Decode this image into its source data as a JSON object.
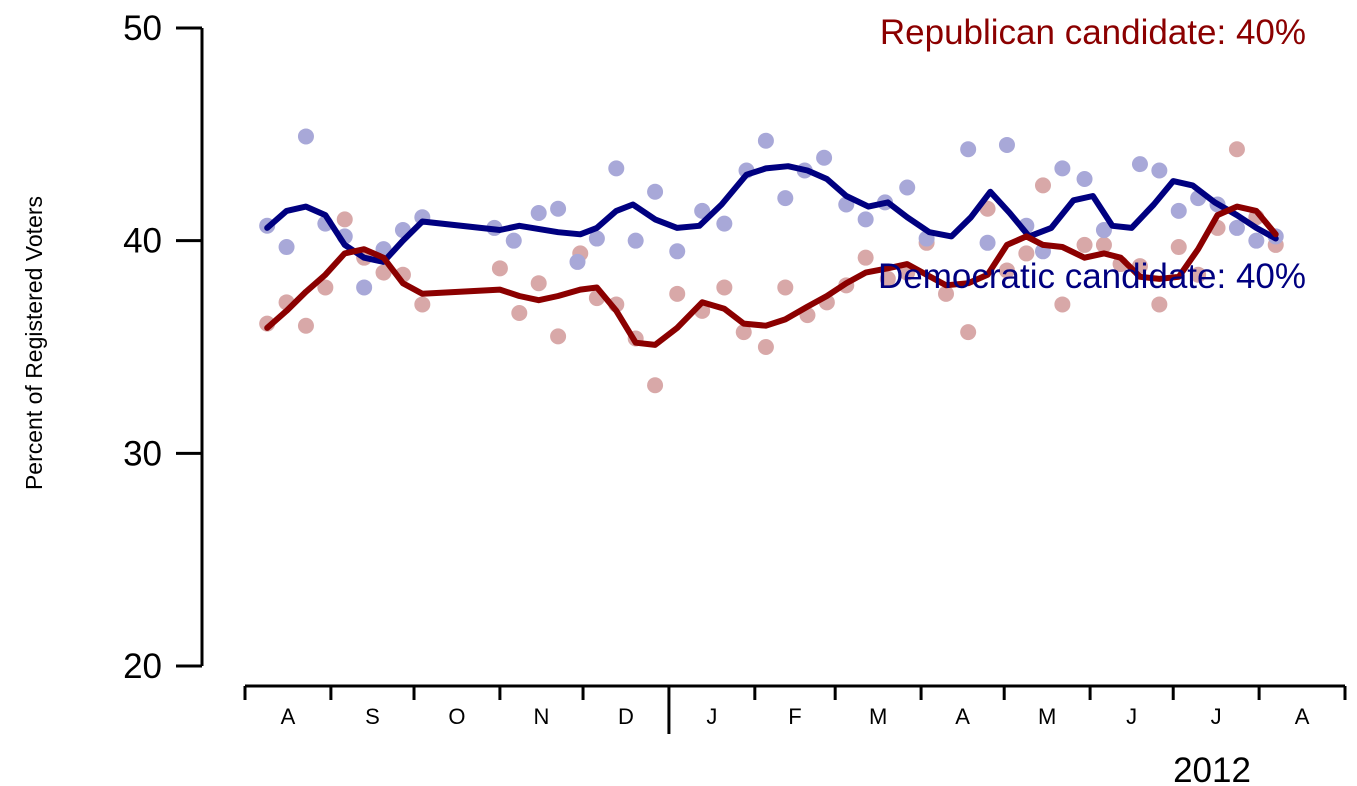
{
  "chart_data": {
    "type": "line",
    "ylabel": "Percent of Registered Voters",
    "ylim": [
      20,
      50
    ],
    "yticks": [
      20,
      30,
      40,
      50
    ],
    "x_unit": "month",
    "months": [
      {
        "label": "A",
        "date": "2011-08"
      },
      {
        "label": "S",
        "date": "2011-09"
      },
      {
        "label": "O",
        "date": "2011-10"
      },
      {
        "label": "N",
        "date": "2011-11"
      },
      {
        "label": "D",
        "date": "2011-12"
      },
      {
        "label": "J",
        "date": "2012-01"
      },
      {
        "label": "F",
        "date": "2012-02"
      },
      {
        "label": "M",
        "date": "2012-03"
      },
      {
        "label": "A",
        "date": "2012-04"
      },
      {
        "label": "M",
        "date": "2012-05"
      },
      {
        "label": "J",
        "date": "2012-06"
      },
      {
        "label": "J",
        "date": "2012-07"
      },
      {
        "label": "A",
        "date": "2012-08"
      }
    ],
    "year_label": "2012",
    "series": [
      {
        "name": "Democratic candidate",
        "label": "Democratic candidate: 40%",
        "color": "#000080",
        "point_color": "#A8A8D8",
        "points": [
          [
            "2011-08-09",
            40.7
          ],
          [
            "2011-08-16",
            39.7
          ],
          [
            "2011-08-23",
            44.9
          ],
          [
            "2011-08-30",
            40.8
          ],
          [
            "2011-09-06",
            40.2
          ],
          [
            "2011-09-13",
            37.8
          ],
          [
            "2011-09-20",
            39.6
          ],
          [
            "2011-09-27",
            40.5
          ],
          [
            "2011-10-04",
            41.1
          ],
          [
            "2011-10-30",
            40.6
          ],
          [
            "2011-11-06",
            40.0
          ],
          [
            "2011-11-15",
            41.3
          ],
          [
            "2011-11-22",
            41.5
          ],
          [
            "2011-11-29",
            39.0
          ],
          [
            "2011-12-06",
            40.1
          ],
          [
            "2011-12-13",
            43.4
          ],
          [
            "2011-12-20",
            40.0
          ],
          [
            "2011-12-27",
            42.3
          ],
          [
            "2012-01-04",
            39.5
          ],
          [
            "2012-01-13",
            41.4
          ],
          [
            "2012-01-21",
            40.8
          ],
          [
            "2012-01-29",
            43.3
          ],
          [
            "2012-02-05",
            44.7
          ],
          [
            "2012-02-12",
            42.0
          ],
          [
            "2012-02-19",
            43.3
          ],
          [
            "2012-02-26",
            43.9
          ],
          [
            "2012-03-05",
            41.7
          ],
          [
            "2012-03-12",
            41.0
          ],
          [
            "2012-03-19",
            41.8
          ],
          [
            "2012-03-27",
            42.5
          ],
          [
            "2012-04-03",
            40.1
          ],
          [
            "2012-04-18",
            44.3
          ],
          [
            "2012-04-25",
            39.9
          ],
          [
            "2012-05-02",
            44.5
          ],
          [
            "2012-05-09",
            40.7
          ],
          [
            "2012-05-15",
            39.5
          ],
          [
            "2012-05-22",
            43.4
          ],
          [
            "2012-05-30",
            42.9
          ],
          [
            "2012-06-06",
            40.5
          ],
          [
            "2012-06-19",
            43.6
          ],
          [
            "2012-06-26",
            43.3
          ],
          [
            "2012-07-03",
            41.4
          ],
          [
            "2012-07-10",
            42.0
          ],
          [
            "2012-07-17",
            41.7
          ],
          [
            "2012-07-24",
            40.6
          ],
          [
            "2012-07-31",
            40.0
          ],
          [
            "2012-08-07",
            40.2
          ]
        ],
        "trend": [
          [
            "2011-08-09",
            40.6
          ],
          [
            "2011-08-16",
            41.4
          ],
          [
            "2011-08-23",
            41.6
          ],
          [
            "2011-08-30",
            41.2
          ],
          [
            "2011-09-06",
            39.8
          ],
          [
            "2011-09-13",
            39.2
          ],
          [
            "2011-09-20",
            39.0
          ],
          [
            "2011-09-27",
            40.0
          ],
          [
            "2011-10-04",
            40.9
          ],
          [
            "2011-11-01",
            40.5
          ],
          [
            "2011-11-08",
            40.7
          ],
          [
            "2011-11-22",
            40.4
          ],
          [
            "2011-11-30",
            40.3
          ],
          [
            "2011-12-06",
            40.6
          ],
          [
            "2011-12-13",
            41.4
          ],
          [
            "2011-12-19",
            41.7
          ],
          [
            "2011-12-27",
            41.0
          ],
          [
            "2012-01-04",
            40.6
          ],
          [
            "2012-01-12",
            40.7
          ],
          [
            "2012-01-20",
            41.7
          ],
          [
            "2012-01-29",
            43.1
          ],
          [
            "2012-02-05",
            43.4
          ],
          [
            "2012-02-13",
            43.5
          ],
          [
            "2012-02-20",
            43.3
          ],
          [
            "2012-02-27",
            42.9
          ],
          [
            "2012-03-05",
            42.1
          ],
          [
            "2012-03-13",
            41.6
          ],
          [
            "2012-03-20",
            41.8
          ],
          [
            "2012-03-27",
            41.1
          ],
          [
            "2012-04-04",
            40.4
          ],
          [
            "2012-04-12",
            40.2
          ],
          [
            "2012-04-19",
            41.1
          ],
          [
            "2012-04-26",
            42.3
          ],
          [
            "2012-05-03",
            41.3
          ],
          [
            "2012-05-10",
            40.2
          ],
          [
            "2012-05-18",
            40.6
          ],
          [
            "2012-05-26",
            41.9
          ],
          [
            "2012-06-02",
            42.1
          ],
          [
            "2012-06-09",
            40.7
          ],
          [
            "2012-06-16",
            40.6
          ],
          [
            "2012-06-24",
            41.7
          ],
          [
            "2012-07-01",
            42.8
          ],
          [
            "2012-07-08",
            42.6
          ],
          [
            "2012-07-16",
            41.8
          ],
          [
            "2012-07-24",
            41.2
          ],
          [
            "2012-07-31",
            40.6
          ],
          [
            "2012-08-07",
            40.1
          ]
        ]
      },
      {
        "name": "Republican candidate",
        "label": "Republican candidate: 40%",
        "color": "#8B0000",
        "point_color": "#D8A8A8",
        "points": [
          [
            "2011-08-09",
            36.1
          ],
          [
            "2011-08-16",
            37.1
          ],
          [
            "2011-08-23",
            36.0
          ],
          [
            "2011-08-30",
            37.8
          ],
          [
            "2011-09-06",
            41.0
          ],
          [
            "2011-09-13",
            39.2
          ],
          [
            "2011-09-20",
            38.5
          ],
          [
            "2011-09-27",
            38.4
          ],
          [
            "2011-10-04",
            37.0
          ],
          [
            "2011-11-01",
            38.7
          ],
          [
            "2011-11-08",
            36.6
          ],
          [
            "2011-11-15",
            38.0
          ],
          [
            "2011-11-22",
            35.5
          ],
          [
            "2011-11-30",
            39.4
          ],
          [
            "2011-12-06",
            37.3
          ],
          [
            "2011-12-13",
            37.0
          ],
          [
            "2011-12-20",
            35.4
          ],
          [
            "2011-12-27",
            33.2
          ],
          [
            "2012-01-04",
            37.5
          ],
          [
            "2012-01-13",
            36.7
          ],
          [
            "2012-01-21",
            37.8
          ],
          [
            "2012-01-28",
            35.7
          ],
          [
            "2012-02-05",
            35.0
          ],
          [
            "2012-02-12",
            37.8
          ],
          [
            "2012-02-20",
            36.5
          ],
          [
            "2012-02-27",
            37.1
          ],
          [
            "2012-03-05",
            37.9
          ],
          [
            "2012-03-12",
            39.2
          ],
          [
            "2012-03-20",
            38.2
          ],
          [
            "2012-03-27",
            38.5
          ],
          [
            "2012-04-03",
            39.9
          ],
          [
            "2012-04-10",
            37.5
          ],
          [
            "2012-04-18",
            35.7
          ],
          [
            "2012-04-25",
            41.5
          ],
          [
            "2012-05-02",
            38.6
          ],
          [
            "2012-05-09",
            39.4
          ],
          [
            "2012-05-15",
            42.6
          ],
          [
            "2012-05-22",
            37.0
          ],
          [
            "2012-05-30",
            39.8
          ],
          [
            "2012-06-06",
            39.8
          ],
          [
            "2012-06-12",
            38.9
          ],
          [
            "2012-06-19",
            38.8
          ],
          [
            "2012-06-26",
            37.0
          ],
          [
            "2012-07-03",
            39.7
          ],
          [
            "2012-07-10",
            38.4
          ],
          [
            "2012-07-17",
            40.6
          ],
          [
            "2012-07-24",
            44.3
          ],
          [
            "2012-07-31",
            41.1
          ],
          [
            "2012-08-07",
            39.8
          ]
        ],
        "trend": [
          [
            "2011-08-09",
            35.9
          ],
          [
            "2011-08-16",
            36.7
          ],
          [
            "2011-08-23",
            37.6
          ],
          [
            "2011-08-30",
            38.4
          ],
          [
            "2011-09-06",
            39.4
          ],
          [
            "2011-09-13",
            39.6
          ],
          [
            "2011-09-20",
            39.2
          ],
          [
            "2011-09-27",
            38.0
          ],
          [
            "2011-10-04",
            37.5
          ],
          [
            "2011-11-01",
            37.7
          ],
          [
            "2011-11-08",
            37.4
          ],
          [
            "2011-11-15",
            37.2
          ],
          [
            "2011-11-22",
            37.4
          ],
          [
            "2011-11-30",
            37.7
          ],
          [
            "2011-12-06",
            37.8
          ],
          [
            "2011-12-13",
            36.7
          ],
          [
            "2011-12-20",
            35.2
          ],
          [
            "2011-12-27",
            35.1
          ],
          [
            "2012-01-04",
            35.9
          ],
          [
            "2012-01-13",
            37.1
          ],
          [
            "2012-01-21",
            36.8
          ],
          [
            "2012-01-28",
            36.1
          ],
          [
            "2012-02-05",
            36.0
          ],
          [
            "2012-02-12",
            36.3
          ],
          [
            "2012-02-20",
            36.9
          ],
          [
            "2012-02-27",
            37.4
          ],
          [
            "2012-03-05",
            38.0
          ],
          [
            "2012-03-12",
            38.5
          ],
          [
            "2012-03-20",
            38.7
          ],
          [
            "2012-03-27",
            38.9
          ],
          [
            "2012-04-03",
            38.4
          ],
          [
            "2012-04-10",
            37.9
          ],
          [
            "2012-04-18",
            38.0
          ],
          [
            "2012-04-25",
            38.4
          ],
          [
            "2012-05-02",
            39.8
          ],
          [
            "2012-05-09",
            40.2
          ],
          [
            "2012-05-15",
            39.8
          ],
          [
            "2012-05-22",
            39.7
          ],
          [
            "2012-05-30",
            39.2
          ],
          [
            "2012-06-06",
            39.4
          ],
          [
            "2012-06-12",
            39.2
          ],
          [
            "2012-06-19",
            38.3
          ],
          [
            "2012-06-26",
            38.2
          ],
          [
            "2012-07-03",
            38.3
          ],
          [
            "2012-07-10",
            39.6
          ],
          [
            "2012-07-17",
            41.2
          ],
          [
            "2012-07-24",
            41.6
          ],
          [
            "2012-07-31",
            41.4
          ],
          [
            "2012-08-07",
            40.3
          ]
        ]
      }
    ]
  }
}
